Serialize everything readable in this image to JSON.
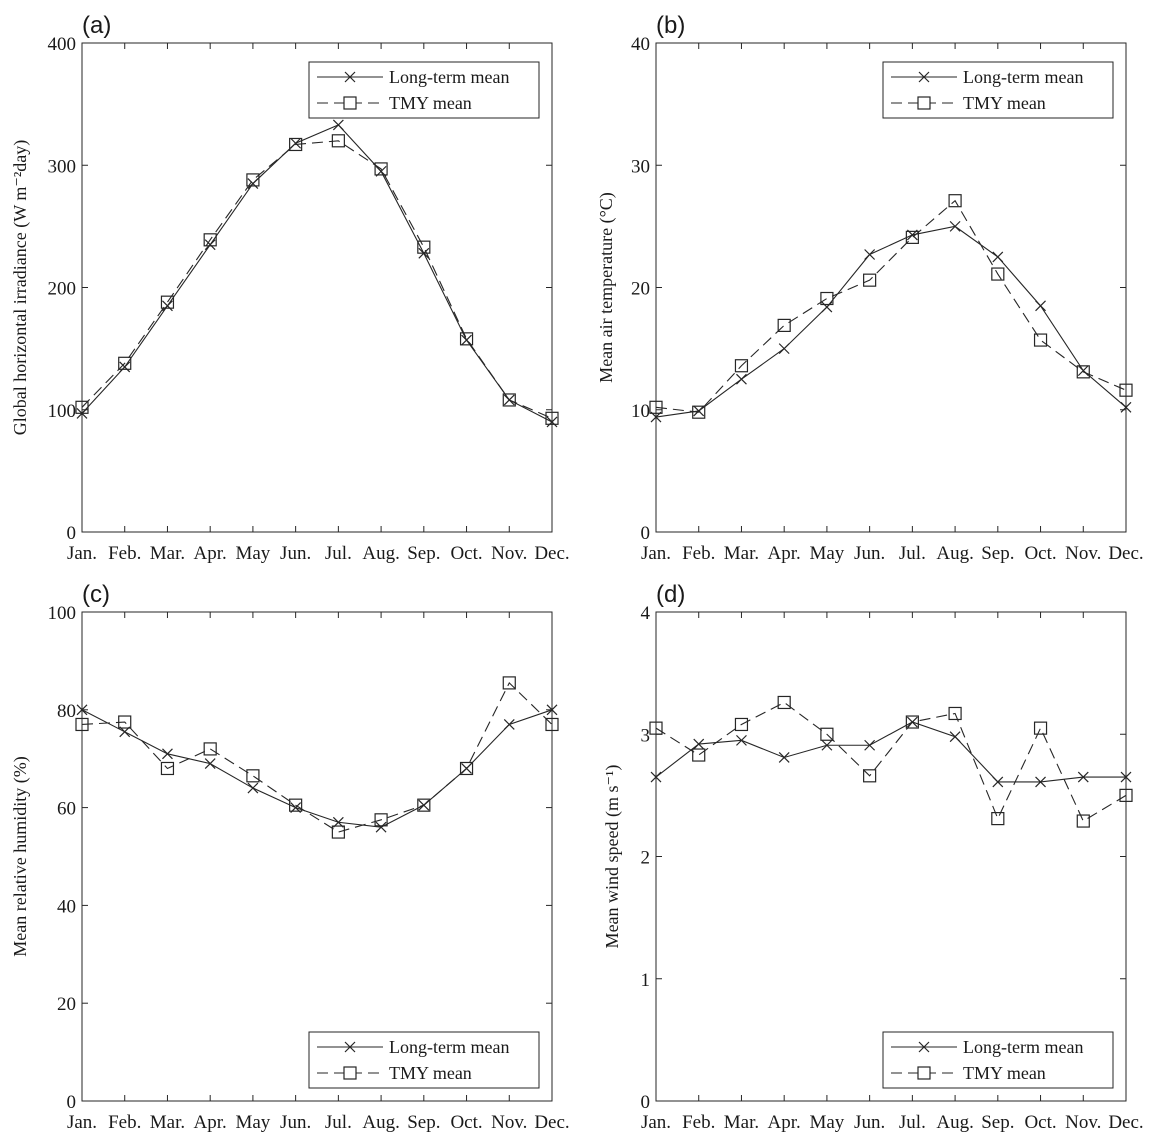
{
  "chart_data": [
    {
      "panel": "(a)",
      "type": "line",
      "categories": [
        "Jan.",
        "Feb.",
        "Mar.",
        "Apr.",
        "May",
        "Jun.",
        "Jul.",
        "Aug.",
        "Sep.",
        "Oct.",
        "Nov.",
        "Dec."
      ],
      "ylabel": "Global horizontal irradiance (W m⁻²day)",
      "ylim": [
        0,
        400
      ],
      "yticks": [
        0,
        100,
        200,
        300,
        400
      ],
      "legend": "top-right",
      "series": [
        {
          "name": "Long-term mean",
          "style": "solid",
          "marker": "x",
          "values": [
            97,
            135,
            185,
            235,
            285,
            318,
            333,
            295,
            228,
            157,
            108,
            90
          ]
        },
        {
          "name": "TMY mean",
          "style": "dashed",
          "marker": "square",
          "values": [
            102,
            138,
            188,
            239,
            288,
            317,
            320,
            297,
            233,
            158,
            108,
            93
          ]
        }
      ]
    },
    {
      "panel": "(b)",
      "type": "line",
      "categories": [
        "Jan.",
        "Feb.",
        "Mar.",
        "Apr.",
        "May",
        "Jun.",
        "Jul.",
        "Aug.",
        "Sep.",
        "Oct.",
        "Nov.",
        "Dec."
      ],
      "ylabel": "Mean air temperature (°C)",
      "ylim": [
        0,
        40
      ],
      "yticks": [
        0,
        10,
        20,
        30,
        40
      ],
      "legend": "top-right",
      "series": [
        {
          "name": "Long-term mean",
          "style": "solid",
          "marker": "x",
          "values": [
            9.4,
            9.9,
            12.5,
            15.0,
            18.4,
            22.7,
            24.3,
            25.0,
            22.5,
            18.5,
            13.2,
            10.2
          ]
        },
        {
          "name": "TMY mean",
          "style": "dashed",
          "marker": "square",
          "values": [
            10.2,
            9.8,
            13.6,
            16.9,
            19.1,
            20.6,
            24.1,
            27.1,
            21.1,
            15.7,
            13.1,
            11.6
          ]
        }
      ]
    },
    {
      "panel": "(c)",
      "type": "line",
      "categories": [
        "Jan.",
        "Feb.",
        "Mar.",
        "Apr.",
        "May",
        "Jun.",
        "Jul.",
        "Aug.",
        "Sep.",
        "Oct.",
        "Nov.",
        "Dec."
      ],
      "ylabel": "Mean relative humidity (%)",
      "ylim": [
        0,
        100
      ],
      "yticks": [
        0,
        20,
        40,
        60,
        80,
        100
      ],
      "legend": "bottom-right",
      "series": [
        {
          "name": "Long-term mean",
          "style": "solid",
          "marker": "x",
          "values": [
            80,
            75.5,
            71,
            69,
            64,
            60,
            57,
            56,
            60.5,
            68,
            77,
            80
          ]
        },
        {
          "name": "TMY mean",
          "style": "dashed",
          "marker": "square",
          "values": [
            77,
            77.5,
            68,
            72,
            66.5,
            60.5,
            55,
            57.5,
            60.5,
            68,
            85.5,
            77
          ]
        }
      ]
    },
    {
      "panel": "(d)",
      "type": "line",
      "categories": [
        "Jan.",
        "Feb.",
        "Mar.",
        "Apr.",
        "May",
        "Jun.",
        "Jul.",
        "Aug.",
        "Sep.",
        "Oct.",
        "Nov.",
        "Dec."
      ],
      "ylabel": "Mean wind speed (m s⁻¹)",
      "ylim": [
        0,
        4
      ],
      "yticks": [
        0,
        1,
        2,
        3,
        4
      ],
      "legend": "bottom-right",
      "series": [
        {
          "name": "Long-term mean",
          "style": "solid",
          "marker": "x",
          "values": [
            2.65,
            2.92,
            2.95,
            2.81,
            2.91,
            2.91,
            3.1,
            2.98,
            2.61,
            2.61,
            2.65,
            2.65
          ]
        },
        {
          "name": "TMY mean",
          "style": "dashed",
          "marker": "square",
          "values": [
            3.05,
            2.83,
            3.08,
            3.26,
            3.0,
            2.66,
            3.1,
            3.17,
            2.31,
            3.05,
            2.29,
            2.5
          ]
        }
      ]
    }
  ]
}
